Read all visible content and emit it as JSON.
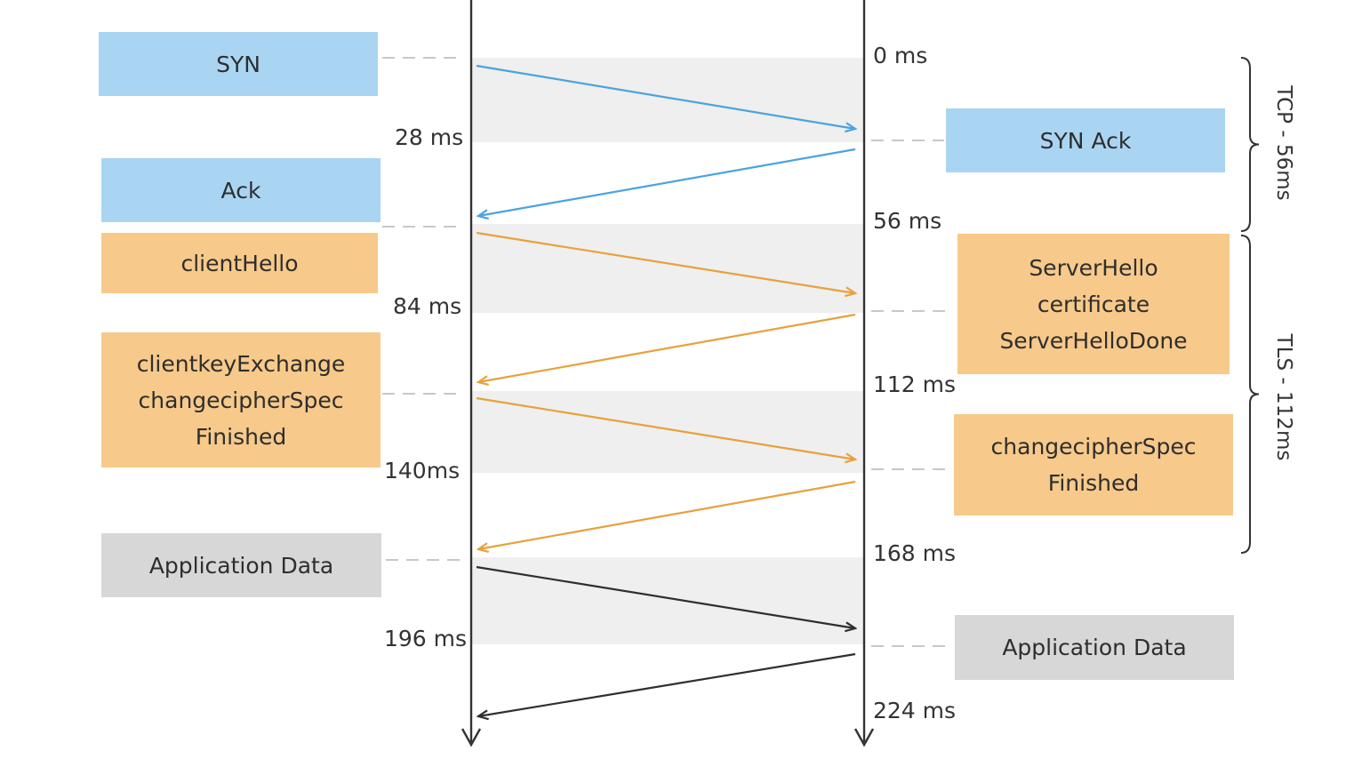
{
  "colors": {
    "tcp": "#4aa3df",
    "tls": "#e8a13a",
    "app": "#2f2f2f",
    "band": "#efefef",
    "timeline": "#333333",
    "dash": "#c8c8c8"
  },
  "client_messages": [
    {
      "lines": [
        "SYN"
      ],
      "style": "blue"
    },
    {
      "lines": [
        "Ack"
      ],
      "style": "blue"
    },
    {
      "lines": [
        "clientHello"
      ],
      "style": "orange"
    },
    {
      "lines": [
        "clientkeyExchange",
        "changecipherSpec",
        "Finished"
      ],
      "style": "orange"
    },
    {
      "lines": [
        "Application Data"
      ],
      "style": "gray"
    }
  ],
  "server_messages": [
    {
      "lines": [
        "SYN Ack"
      ],
      "style": "blue"
    },
    {
      "lines": [
        "ServerHello",
        "certificate",
        "ServerHelloDone"
      ],
      "style": "orange"
    },
    {
      "lines": [
        "changecipherSpec",
        "Finished"
      ],
      "style": "orange"
    },
    {
      "lines": [
        "Application Data"
      ],
      "style": "gray"
    }
  ],
  "left_times": [
    "28 ms",
    "84 ms",
    "140ms",
    "196 ms"
  ],
  "right_times": [
    "0 ms",
    "56 ms",
    "112 ms",
    "168 ms",
    "224 ms"
  ],
  "phases": [
    {
      "label": "TCP - 56ms"
    },
    {
      "label": "TLS - 112ms"
    }
  ]
}
